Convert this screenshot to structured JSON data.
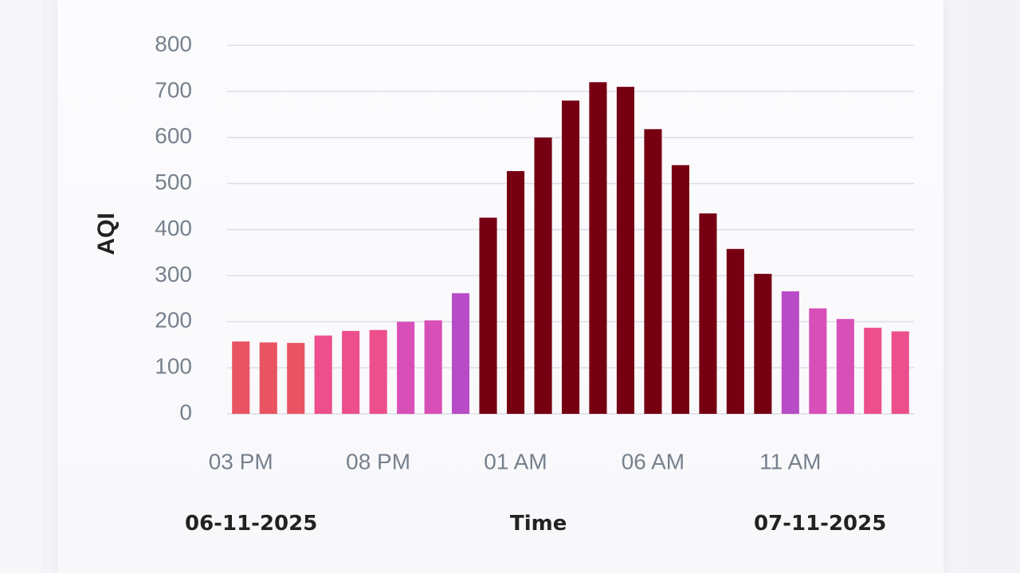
{
  "chart_data": {
    "type": "bar",
    "ylabel": "AQI",
    "xlabel": "Time",
    "ylim": [
      0,
      800
    ],
    "yticks": [
      0,
      100,
      200,
      300,
      400,
      500,
      600,
      700,
      800
    ],
    "grid": true,
    "x_tick_labels": [
      "03 PM",
      "08 PM",
      "01 AM",
      "06 AM",
      "11 AM"
    ],
    "categories": [
      "03 PM",
      "04 PM",
      "05 PM",
      "06 PM",
      "07 PM",
      "08 PM",
      "09 PM",
      "10 PM",
      "11 PM",
      "12 AM",
      "01 AM",
      "02 AM",
      "03 AM",
      "04 AM",
      "05 AM",
      "06 AM",
      "07 AM",
      "08 AM",
      "09 AM",
      "10 AM",
      "11 AM",
      "12 PM",
      "01 PM",
      "02 PM",
      "03 PM"
    ],
    "values": [
      157,
      155,
      154,
      170,
      180,
      182,
      200,
      203,
      262,
      426,
      527,
      600,
      680,
      720,
      710,
      618,
      540,
      435,
      358,
      304,
      266,
      229,
      206,
      187,
      179
    ],
    "colors": [
      "#e85462",
      "#e85462",
      "#e85462",
      "#ec4f8c",
      "#ec4f8c",
      "#ec4f8c",
      "#d94fb8",
      "#d94fb8",
      "#b84cc6",
      "#760012",
      "#760012",
      "#760012",
      "#760012",
      "#760012",
      "#760012",
      "#760012",
      "#760012",
      "#760012",
      "#760012",
      "#760012",
      "#b84cc6",
      "#d94fb8",
      "#d94fb8",
      "#ec4f8c",
      "#ec4f8c"
    ]
  },
  "footer": {
    "start_date": "06-11-2025",
    "axis_title": "Time",
    "end_date": "07-11-2025"
  }
}
